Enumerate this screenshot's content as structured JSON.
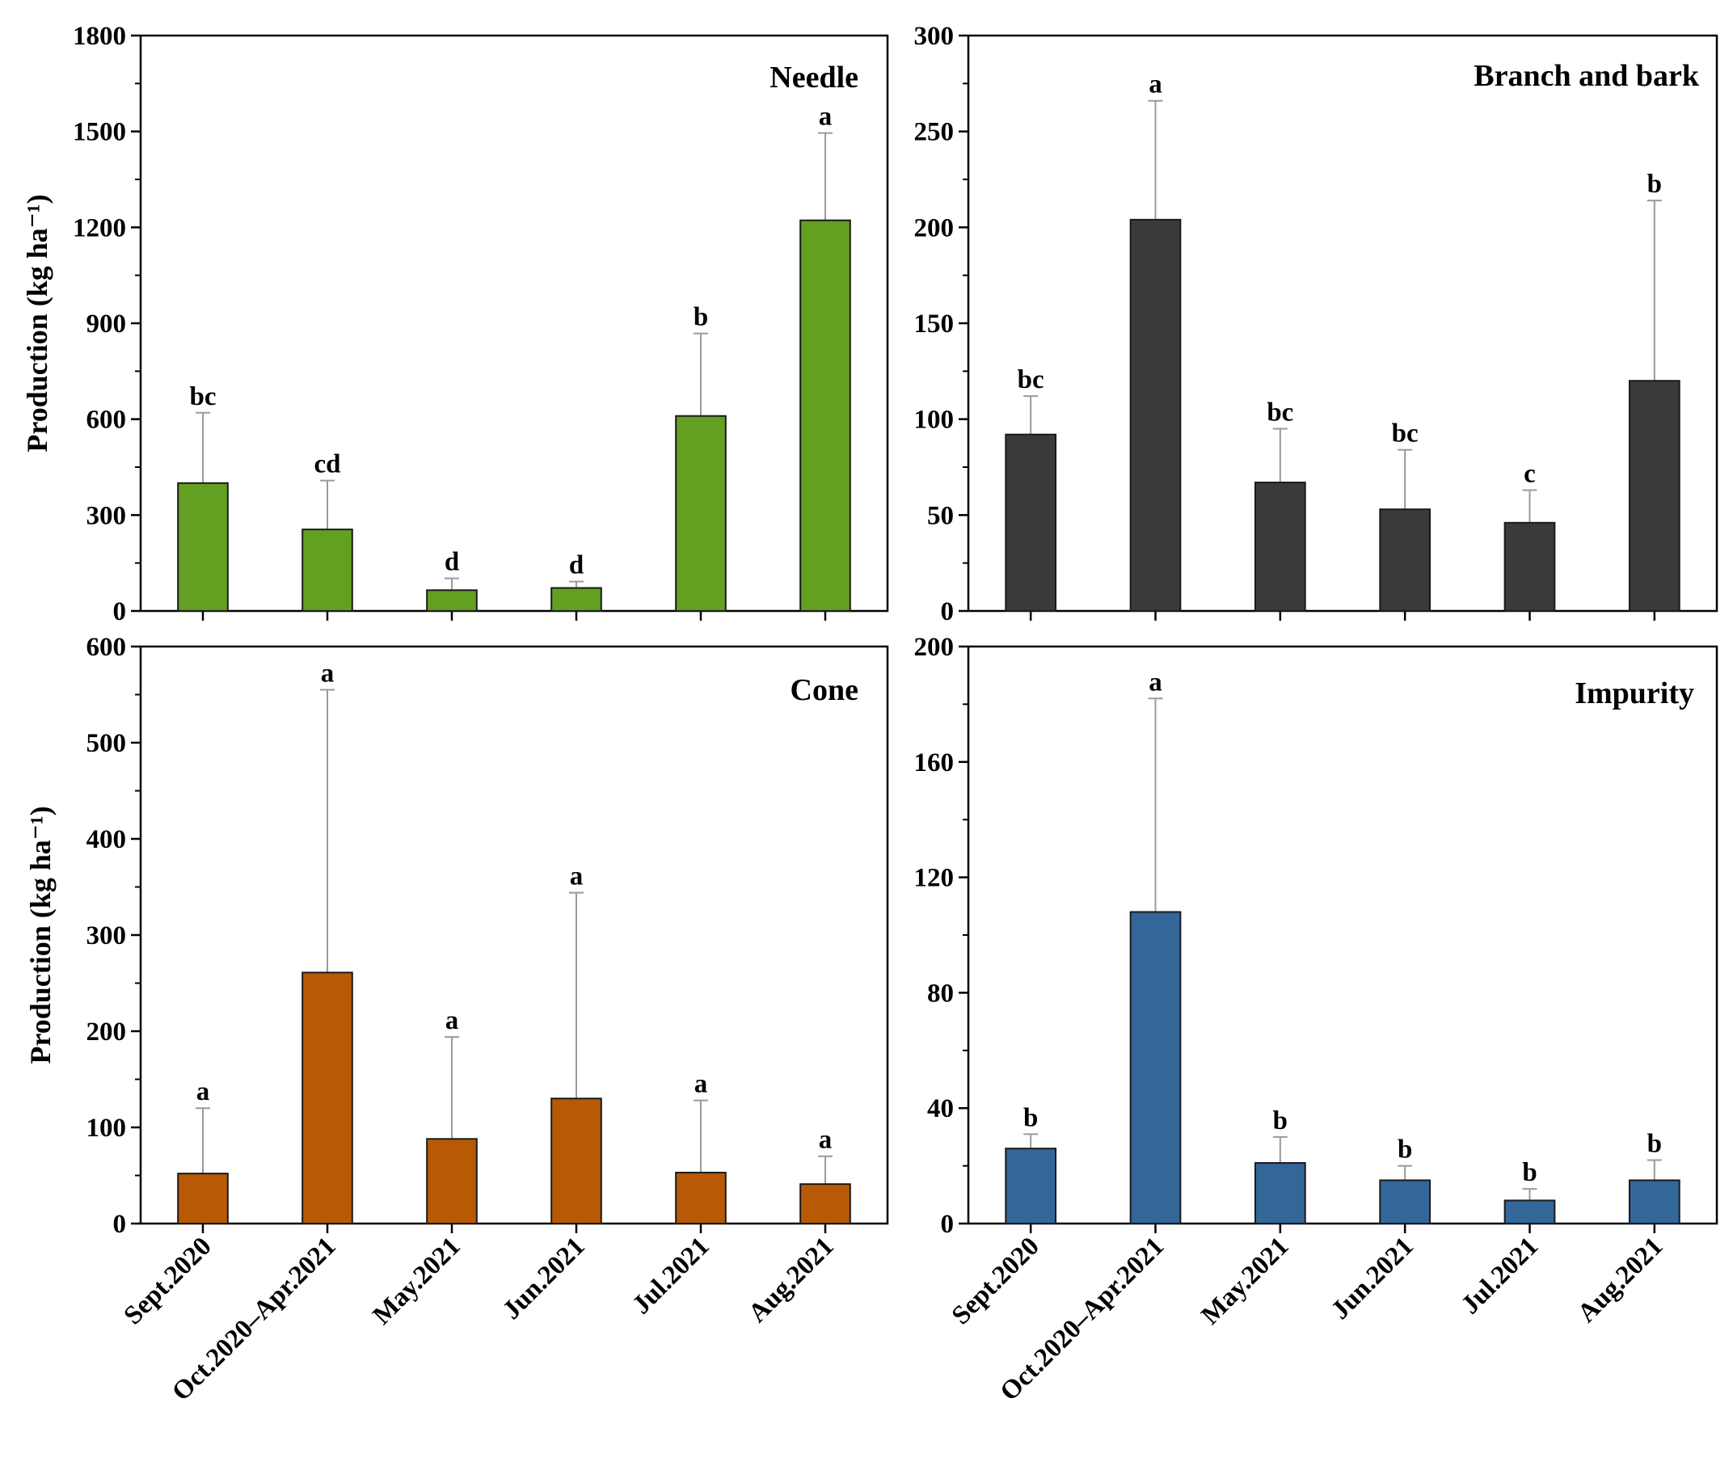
{
  "chart_data": [
    {
      "type": "bar",
      "title": "Needle",
      "ylabel": "Production (kg ha⁻¹)",
      "xlabel": "",
      "categories": [
        "Sept.2020",
        "Oct.2020–Apr.2021",
        "May.2021",
        "Jun.2021",
        "Jul.2021",
        "Aug.2021"
      ],
      "values": [
        400,
        255,
        65,
        72,
        610,
        1222
      ],
      "error_upper": [
        620,
        408,
        102,
        92,
        868,
        1495
      ],
      "significance": [
        "bc",
        "cd",
        "d",
        "d",
        "b",
        "a"
      ],
      "ylim": [
        0,
        1800
      ],
      "yticks": [
        0,
        300,
        600,
        900,
        1200,
        1500,
        1800
      ],
      "color": "#63a022",
      "show_xticklabels": false
    },
    {
      "type": "bar",
      "title": "Branch and bark",
      "ylabel": "",
      "xlabel": "",
      "categories": [
        "Sept.2020",
        "Oct.2020–Apr.2021",
        "May.2021",
        "Jun.2021",
        "Jul.2021",
        "Aug.2021"
      ],
      "values": [
        92,
        204,
        67,
        53,
        46,
        120
      ],
      "error_upper": [
        112,
        266,
        95,
        84,
        63,
        214
      ],
      "significance": [
        "bc",
        "a",
        "bc",
        "bc",
        "c",
        "b"
      ],
      "ylim": [
        0,
        300
      ],
      "yticks": [
        0,
        50,
        100,
        150,
        200,
        250,
        300
      ],
      "color": "#3a3a3a",
      "show_xticklabels": false
    },
    {
      "type": "bar",
      "title": "Cone",
      "ylabel": "Production (kg ha⁻¹)",
      "xlabel": "",
      "categories": [
        "Sept.2020",
        "Oct.2020–Apr.2021",
        "May.2021",
        "Jun.2021",
        "Jul.2021",
        "Aug.2021"
      ],
      "values": [
        52,
        261,
        88,
        130,
        53,
        41
      ],
      "error_upper": [
        120,
        555,
        194,
        344,
        128,
        70
      ],
      "significance": [
        "a",
        "a",
        "a",
        "a",
        "a",
        "a"
      ],
      "ylim": [
        0,
        600
      ],
      "yticks": [
        0,
        100,
        200,
        300,
        400,
        500,
        600
      ],
      "color": "#b85a05",
      "show_xticklabels": true
    },
    {
      "type": "bar",
      "title": "Impurity",
      "ylabel": "",
      "xlabel": "",
      "categories": [
        "Sept.2020",
        "Oct.2020–Apr.2021",
        "May.2021",
        "Jun.2021",
        "Jul.2021",
        "Aug.2021"
      ],
      "values": [
        26,
        108,
        21,
        15,
        8,
        15
      ],
      "error_upper": [
        31,
        182,
        30,
        20,
        12,
        22
      ],
      "significance": [
        "b",
        "a",
        "b",
        "b",
        "b",
        "b"
      ],
      "ylim": [
        0,
        200
      ],
      "yticks": [
        0,
        40,
        80,
        120,
        160,
        200
      ],
      "color": "#336699",
      "show_xticklabels": true
    }
  ]
}
